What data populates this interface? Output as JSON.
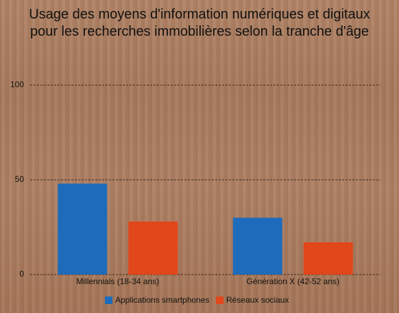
{
  "chart_data": {
    "type": "bar",
    "title": "Usage des moyens d'information numériques et digitaux pour les recherches immobilières selon la tranche d'âge",
    "categories": [
      "Millennials (18-34 ans)",
      "Génération X (42-52 ans)"
    ],
    "series": [
      {
        "name": "Applications smartphones",
        "color": "#1f6bbb",
        "values": [
          48,
          30
        ]
      },
      {
        "name": "Réseaux sociaux",
        "color": "#e2461b",
        "values": [
          28,
          17
        ]
      }
    ],
    "ylim": [
      0,
      100
    ],
    "yticks": [
      0,
      50,
      100
    ],
    "grid": true,
    "legend": "bottom"
  }
}
